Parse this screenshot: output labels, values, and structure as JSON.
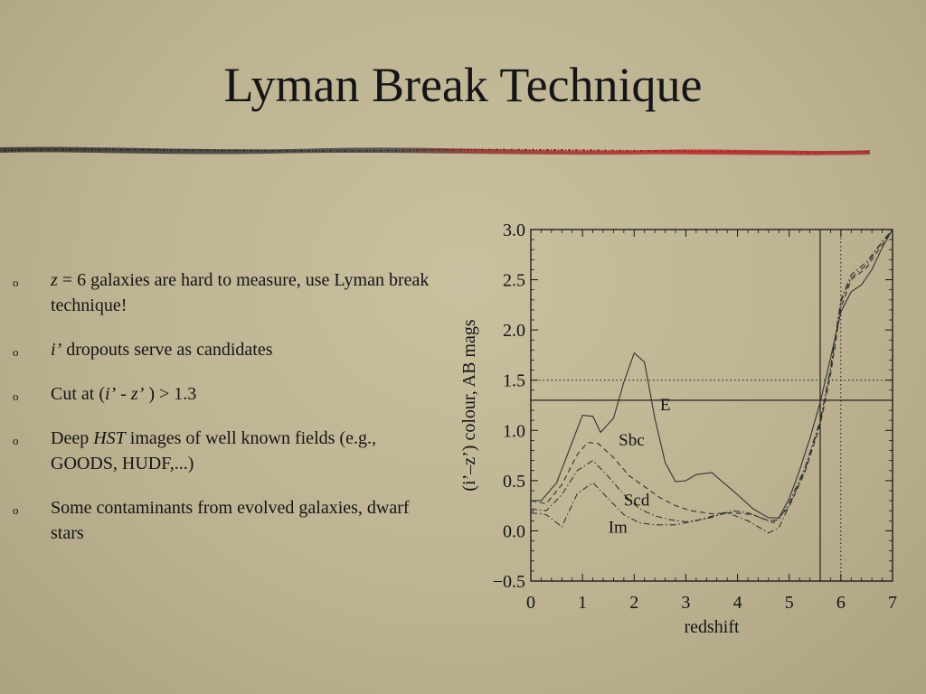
{
  "title": "Lyman Break Technique",
  "bullets": [
    {
      "parts": [
        {
          "t": "z",
          "i": true
        },
        {
          "t": " = 6 galaxies are hard to measure, use Lyman break technique!"
        }
      ]
    },
    {
      "parts": [
        {
          "t": " "
        },
        {
          "t": "i’",
          "i": true
        },
        {
          "t": " dropouts serve as candidates"
        }
      ]
    },
    {
      "parts": [
        {
          "t": "Cut at ("
        },
        {
          "t": "i’",
          "i": true
        },
        {
          "t": " - "
        },
        {
          "t": "z’",
          "i": true
        },
        {
          "t": " ) > 1.3"
        }
      ]
    },
    {
      "parts": [
        {
          "t": "Deep "
        },
        {
          "t": "HST",
          "i": true
        },
        {
          "t": " images of well known fields (e.g., GOODS, HUDF,...)"
        }
      ]
    },
    {
      "parts": [
        {
          "t": "Some contaminants from evolved galaxies, dwarf stars"
        }
      ]
    }
  ],
  "colors": {
    "text": "#141414",
    "divider_dark": "#2a2a2a",
    "divider_red": "#b01818",
    "axis": "#141414",
    "curve": "#333333"
  },
  "chart_data": {
    "type": "line",
    "xlabel": "redshift",
    "ylabel": "(i’–z’) colour, AB mags",
    "xlim": [
      0,
      7
    ],
    "ylim": [
      -0.5,
      3.0
    ],
    "xticks": [
      0,
      1,
      2,
      3,
      4,
      5,
      6,
      7
    ],
    "xtick_labels": [
      "0",
      "1",
      "2",
      "3",
      "4",
      "5",
      "6",
      "7"
    ],
    "yticks": [
      -0.5,
      0.0,
      0.5,
      1.0,
      1.5,
      2.0,
      2.5,
      3.0
    ],
    "ytick_labels": [
      "−0.5",
      "0.0",
      "0.5",
      "1.0",
      "1.5",
      "2.0",
      "2.5",
      "3.0"
    ],
    "grid": false,
    "reference_lines": [
      {
        "orientation": "h",
        "value": 1.3,
        "style": "solid"
      },
      {
        "orientation": "h",
        "value": 1.5,
        "style": "dotted"
      },
      {
        "orientation": "v",
        "value": 5.6,
        "style": "solid"
      },
      {
        "orientation": "v",
        "value": 6.0,
        "style": "dotted"
      }
    ],
    "series": [
      {
        "name": "E",
        "style": "solid",
        "x": [
          0,
          0.2,
          0.5,
          1.0,
          1.2,
          1.35,
          1.6,
          1.8,
          2.0,
          2.2,
          2.4,
          2.6,
          2.8,
          3.0,
          3.2,
          3.5,
          4.0,
          4.3,
          4.6,
          4.8,
          5.0,
          5.2,
          5.4,
          5.6,
          5.8,
          6.0,
          6.2,
          6.4,
          6.6,
          6.8,
          7.0
        ],
        "y": [
          0.3,
          0.3,
          0.48,
          1.15,
          1.14,
          0.98,
          1.12,
          1.48,
          1.77,
          1.68,
          1.12,
          0.68,
          0.49,
          0.5,
          0.56,
          0.58,
          0.36,
          0.22,
          0.13,
          0.13,
          0.32,
          0.6,
          0.92,
          1.28,
          1.72,
          2.18,
          2.38,
          2.45,
          2.6,
          2.82,
          3.0
        ]
      },
      {
        "name": "Sbc",
        "style": "dashed",
        "x": [
          0,
          0.3,
          0.6,
          0.9,
          1.1,
          1.3,
          1.6,
          1.9,
          2.2,
          2.5,
          2.8,
          3.1,
          3.5,
          3.9,
          4.3,
          4.7,
          5.0,
          5.3,
          5.6,
          5.8,
          6.0,
          6.2,
          6.5,
          6.8,
          7.0
        ],
        "y": [
          0.3,
          0.27,
          0.46,
          0.76,
          0.88,
          0.87,
          0.73,
          0.55,
          0.44,
          0.33,
          0.25,
          0.2,
          0.17,
          0.18,
          0.16,
          0.08,
          0.24,
          0.58,
          1.05,
          1.55,
          2.22,
          2.5,
          2.62,
          2.85,
          3.0
        ]
      },
      {
        "name": "Scd",
        "style": "dashdot",
        "x": [
          0,
          0.3,
          0.6,
          0.9,
          1.2,
          1.5,
          1.8,
          2.1,
          2.4,
          2.7,
          3.0,
          3.4,
          3.8,
          4.2,
          4.6,
          4.8,
          5.0,
          5.3,
          5.6,
          5.8,
          6.0,
          6.2,
          6.5,
          6.8,
          7.0
        ],
        "y": [
          0.22,
          0.2,
          0.36,
          0.6,
          0.7,
          0.54,
          0.36,
          0.22,
          0.15,
          0.11,
          0.09,
          0.12,
          0.18,
          0.1,
          -0.02,
          0.03,
          0.25,
          0.6,
          1.08,
          1.62,
          2.3,
          2.55,
          2.68,
          2.88,
          3.0
        ]
      },
      {
        "name": "Im",
        "style": "dashdot",
        "x": [
          0,
          0.3,
          0.6,
          0.9,
          1.2,
          1.5,
          1.8,
          2.1,
          2.4,
          2.8,
          3.2,
          3.6,
          3.9,
          4.2,
          4.6,
          4.8,
          5.0,
          5.3,
          5.6,
          5.8,
          6.0,
          6.2,
          6.5,
          6.8,
          7.0
        ],
        "y": [
          0.18,
          0.16,
          0.04,
          0.37,
          0.48,
          0.32,
          0.16,
          0.08,
          0.06,
          0.06,
          0.1,
          0.16,
          0.2,
          0.18,
          0.1,
          0.11,
          0.28,
          0.62,
          1.1,
          1.6,
          2.28,
          2.52,
          2.65,
          2.88,
          3.0
        ]
      }
    ],
    "annotations": [
      {
        "text": "E",
        "x": 2.5,
        "y": 1.2
      },
      {
        "text": "Sbc",
        "x": 1.7,
        "y": 0.85
      },
      {
        "text": "Scd",
        "x": 1.8,
        "y": 0.25
      },
      {
        "text": "Im",
        "x": 1.5,
        "y": -0.02
      }
    ]
  }
}
